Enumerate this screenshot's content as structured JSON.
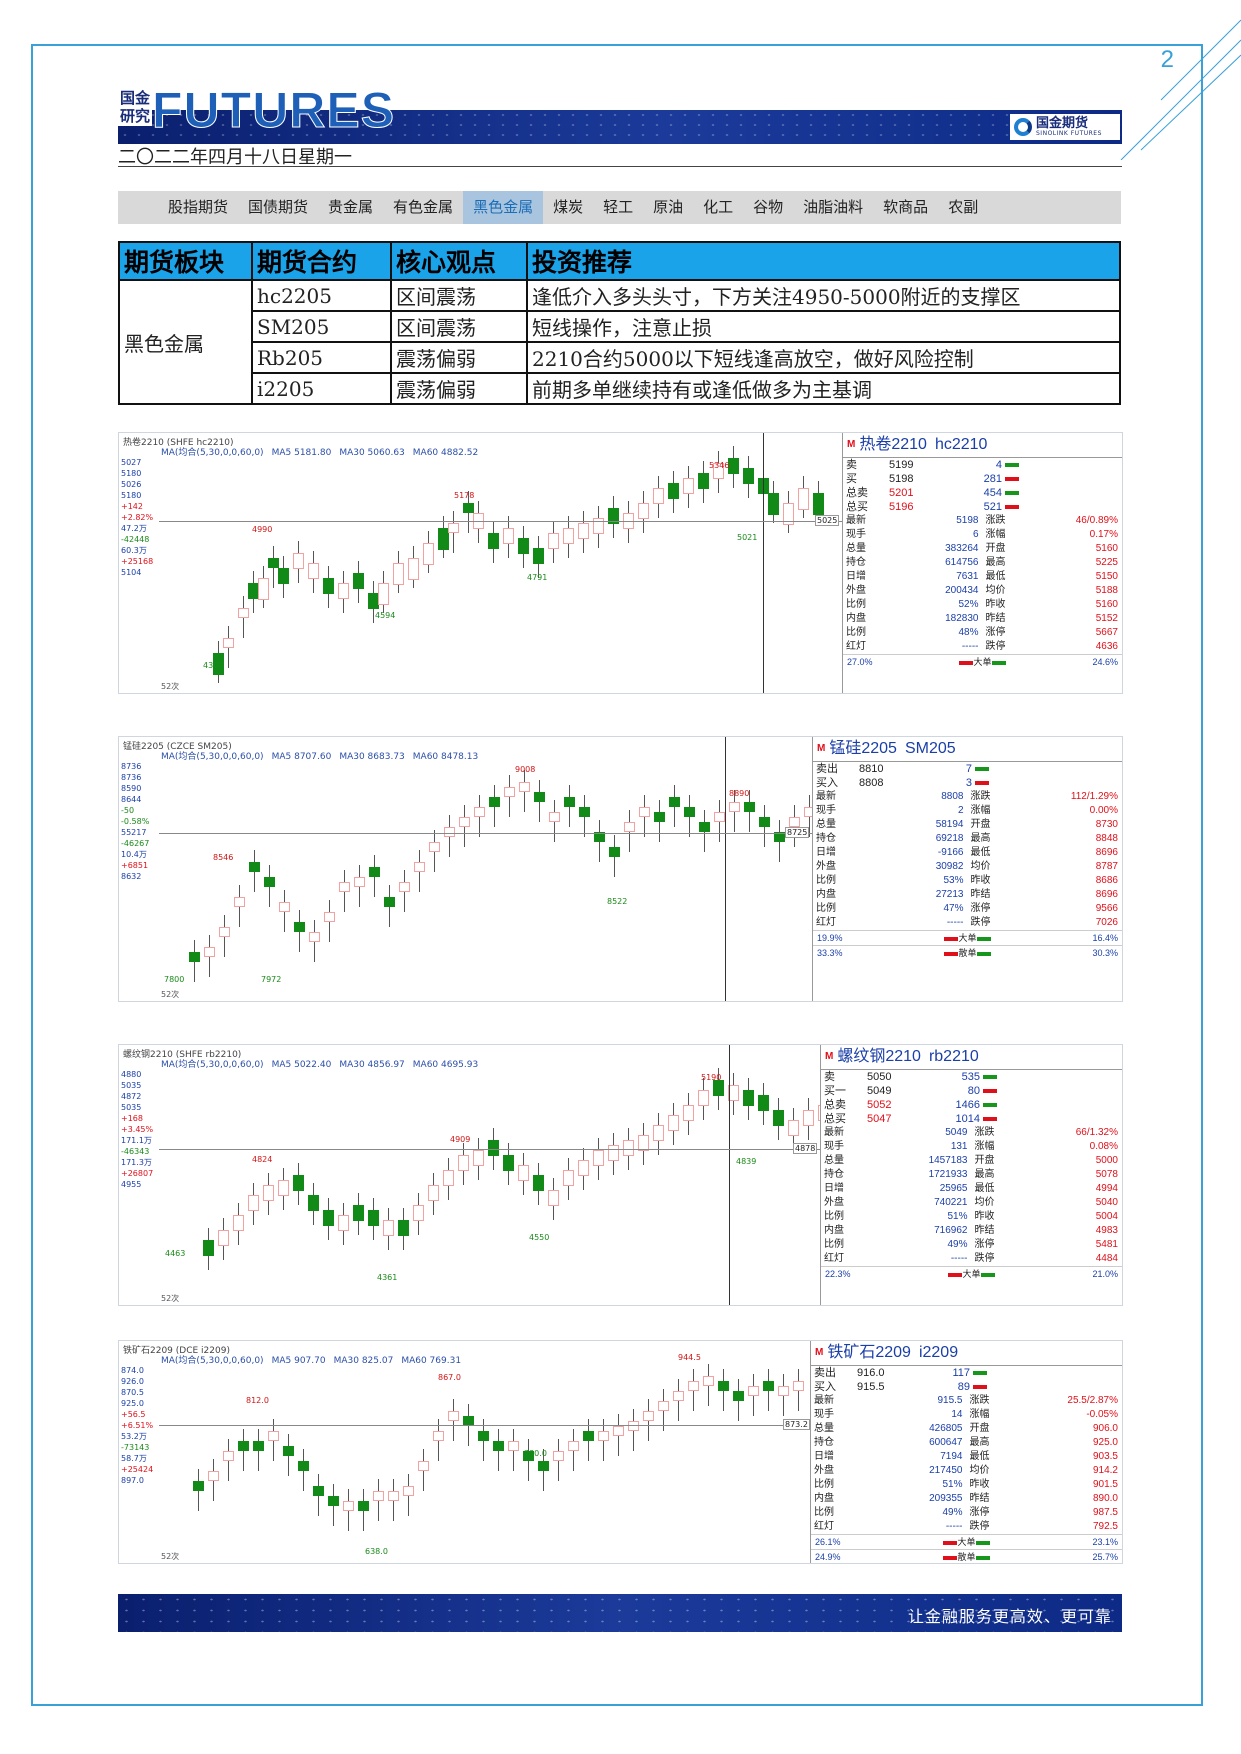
{
  "page_number": "2",
  "brand": {
    "cn_line1": "国金",
    "cn_line2": "研究",
    "en": "FUTURES",
    "logo_cn": "国金期货",
    "logo_en": "SINOLINK FUTURES"
  },
  "date": "二〇二二年四月十八日星期一",
  "nav": [
    "股指期货",
    "国债期货",
    "贵金属",
    "有色金属",
    "黑色金属",
    "煤炭",
    "轻工",
    "原油",
    "化工",
    "谷物",
    "油脂油料",
    "软商品",
    "农副"
  ],
  "nav_active": "黑色金属",
  "table": {
    "headers": [
      "期货板块",
      "期货合约",
      "核心观点",
      "投资推荐"
    ],
    "sector": "黑色金属",
    "rows": [
      {
        "contract": "hc2205",
        "view": "区间震荡",
        "advice": "逢低介入多头头寸，下方关注4950-5000附近的支撑区"
      },
      {
        "contract": "SM205",
        "view": "区间震荡",
        "advice": "短线操作，注意止损"
      },
      {
        "contract": "Rb205",
        "view": "震荡偏弱",
        "advice": "2210合约5000以下短线逢高放空，做好风险控制"
      },
      {
        "contract": "i2205",
        "view": "震荡偏弱",
        "advice": "前期多单继续持有或逢低做多为主基调"
      }
    ]
  },
  "charts": [
    {
      "ma": [
        "MA(均合(5,30,0,0,60,0)",
        "MA5 5181.80",
        "MA30 5060.63",
        "MA60 4882.52"
      ],
      "title": "热卷2210 (SHFE hc2210)",
      "left": [
        "5027",
        "5180",
        "5026",
        "5180",
        "+142",
        "+2.82%",
        "47.2万",
        "-42448",
        "60.3万",
        "+25168",
        "5104"
      ],
      "marks": [
        {
          "t": "5346",
          "c": "r"
        },
        {
          "t": "5178",
          "c": "r"
        },
        {
          "t": "4990",
          "c": "r"
        },
        {
          "t": "5021",
          "c": "g"
        },
        {
          "t": "4791",
          "c": "g"
        },
        {
          "t": "4594",
          "c": "g"
        },
        {
          "t": "4300",
          "c": "g"
        }
      ],
      "price_tag": "5025",
      "foot": "52次",
      "quote": {
        "name": "热卷2210",
        "code": "hc2210",
        "book": [
          [
            "卖",
            "5199",
            "4"
          ],
          [
            "买",
            "5198",
            "281"
          ],
          [
            "总卖",
            "5201",
            "454"
          ],
          [
            "总买",
            "5196",
            "521"
          ]
        ],
        "rows": [
          [
            "最新",
            "5198",
            "涨跌",
            "46/0.89%"
          ],
          [
            "现手",
            "6",
            "涨幅",
            "0.17%"
          ],
          [
            "总量",
            "383264",
            "开盘",
            "5160"
          ],
          [
            "持仓",
            "614756",
            "最高",
            "5225"
          ],
          [
            "日增",
            "7631",
            "最低",
            "5150"
          ],
          [
            "外盘",
            "200434",
            "均价",
            "5188"
          ],
          [
            "比例",
            "52%",
            "昨收",
            "5160"
          ],
          [
            "内盘",
            "182830",
            "昨结",
            "5152"
          ],
          [
            "比例",
            "48%",
            "涨停",
            "5667"
          ],
          [
            "红灯",
            "-----",
            "跌停",
            "4636"
          ]
        ],
        "foot": [
          [
            "27.0%",
            "大单",
            "24.6%"
          ]
        ]
      }
    },
    {
      "ma": [
        "MA(均合(5,30,0,0,60,0)",
        "MA5 8707.60",
        "MA30 8683.73",
        "MA60 8478.13"
      ],
      "title": "锰硅2205 (CZCE SM205)",
      "left": [
        "8736",
        "8736",
        "8590",
        "8644",
        "-50",
        "-0.58%",
        "55217",
        "-46267",
        "10.4万",
        "+6851",
        "8632"
      ],
      "marks": [
        {
          "t": "9008",
          "c": "r"
        },
        {
          "t": "8890",
          "c": "r"
        },
        {
          "t": "8546",
          "c": "r"
        },
        {
          "t": "8522",
          "c": "g"
        },
        {
          "t": "7972",
          "c": "g"
        },
        {
          "t": "7800",
          "c": "g"
        }
      ],
      "price_tag": "8725",
      "foot": "52次",
      "quote": {
        "name": "锰硅2205",
        "code": "SM205",
        "book": [
          [
            "卖出",
            "8810",
            "7"
          ],
          [
            "买入",
            "8808",
            "3"
          ]
        ],
        "rows": [
          [
            "最新",
            "8808",
            "涨跌",
            "112/1.29%"
          ],
          [
            "现手",
            "2",
            "涨幅",
            "0.00%"
          ],
          [
            "总量",
            "58194",
            "开盘",
            "8730"
          ],
          [
            "持仓",
            "69218",
            "最高",
            "8848"
          ],
          [
            "日增",
            "-9166",
            "最低",
            "8696"
          ],
          [
            "外盘",
            "30982",
            "均价",
            "8787"
          ],
          [
            "比例",
            "53%",
            "昨收",
            "8686"
          ],
          [
            "内盘",
            "27213",
            "昨结",
            "8696"
          ],
          [
            "比例",
            "47%",
            "涨停",
            "9566"
          ],
          [
            "红灯",
            "-----",
            "跌停",
            "7026"
          ]
        ],
        "foot": [
          [
            "19.9%",
            "大单",
            "16.4%"
          ],
          [
            "33.3%",
            "散单",
            "30.3%"
          ]
        ]
      }
    },
    {
      "ma": [
        "MA(均合(5,30,0,0,60,0)",
        "MA5 5022.40",
        "MA30 4856.97",
        "MA60 4695.93"
      ],
      "title": "螺纹钢2210 (SHFE rb2210)",
      "left": [
        "4880",
        "5035",
        "4872",
        "5035",
        "+168",
        "+3.45%",
        "171.1万",
        "-46343",
        "171.3万",
        "+26807",
        "4955"
      ],
      "marks": [
        {
          "t": "5190",
          "c": "r"
        },
        {
          "t": "4909",
          "c": "r"
        },
        {
          "t": "4824",
          "c": "r"
        },
        {
          "t": "4839",
          "c": "g"
        },
        {
          "t": "4550",
          "c": "g"
        },
        {
          "t": "4463",
          "c": "g"
        },
        {
          "t": "4361",
          "c": "g"
        }
      ],
      "price_tag": "4878",
      "foot": "52次",
      "quote": {
        "name": "螺纹钢2210",
        "code": "rb2210",
        "book": [
          [
            "卖",
            "5050",
            "535"
          ],
          [
            "买一",
            "5049",
            "80"
          ],
          [
            "总卖",
            "5052",
            "1466"
          ],
          [
            "总买",
            "5047",
            "1014"
          ]
        ],
        "rows": [
          [
            "最新",
            "5049",
            "涨跌",
            "66/1.32%"
          ],
          [
            "现手",
            "131",
            "涨幅",
            "0.08%"
          ],
          [
            "总量",
            "1457183",
            "开盘",
            "5000"
          ],
          [
            "持仓",
            "1721933",
            "最高",
            "5078"
          ],
          [
            "日增",
            "25965",
            "最低",
            "4994"
          ],
          [
            "外盘",
            "740221",
            "均价",
            "5040"
          ],
          [
            "比例",
            "51%",
            "昨收",
            "5004"
          ],
          [
            "内盘",
            "716962",
            "昨结",
            "4983"
          ],
          [
            "比例",
            "49%",
            "涨停",
            "5481"
          ],
          [
            "红灯",
            "-----",
            "跌停",
            "4484"
          ]
        ],
        "foot": [
          [
            "22.3%",
            "大单",
            "21.0%"
          ]
        ]
      }
    },
    {
      "ma": [
        "MA(均合(5,30,0,0,60,0)",
        "MA5 907.70",
        "MA30 825.07",
        "MA60 769.31"
      ],
      "title": "铁矿石2209 (DCE i2209)",
      "left": [
        "874.0",
        "926.0",
        "870.5",
        "925.0",
        "+56.5",
        "+6.51%",
        "53.2万",
        "-73143",
        "58.7万",
        "+25424",
        "897.0"
      ],
      "marks": [
        {
          "t": "944.5",
          "c": "r"
        },
        {
          "t": "867.0",
          "c": "r"
        },
        {
          "t": "812.0",
          "c": "r"
        },
        {
          "t": "730.0",
          "c": "g"
        },
        {
          "t": "638.0",
          "c": "g"
        }
      ],
      "price_tag": "873.2",
      "foot": "52次",
      "quote": {
        "name": "铁矿石2209",
        "code": "i2209",
        "book": [
          [
            "卖出",
            "916.0",
            "117"
          ],
          [
            "买入",
            "915.5",
            "89"
          ]
        ],
        "rows": [
          [
            "最新",
            "915.5",
            "涨跌",
            "25.5/2.87%"
          ],
          [
            "现手",
            "14",
            "涨幅",
            "-0.05%"
          ],
          [
            "总量",
            "426805",
            "开盘",
            "906.0"
          ],
          [
            "持仓",
            "600647",
            "最高",
            "925.0"
          ],
          [
            "日增",
            "7194",
            "最低",
            "903.5"
          ],
          [
            "外盘",
            "217450",
            "均价",
            "914.2"
          ],
          [
            "比例",
            "51%",
            "昨收",
            "901.5"
          ],
          [
            "内盘",
            "209355",
            "昨结",
            "890.0"
          ],
          [
            "比例",
            "49%",
            "涨停",
            "987.5"
          ],
          [
            "红灯",
            "-----",
            "跌停",
            "792.5"
          ]
        ],
        "foot": [
          [
            "26.1%",
            "大单",
            "23.1%"
          ],
          [
            "24.9%",
            "散单",
            "25.7%"
          ]
        ]
      }
    }
  ],
  "footer": {
    "slogan": "让金融服务更高效、更可靠"
  }
}
